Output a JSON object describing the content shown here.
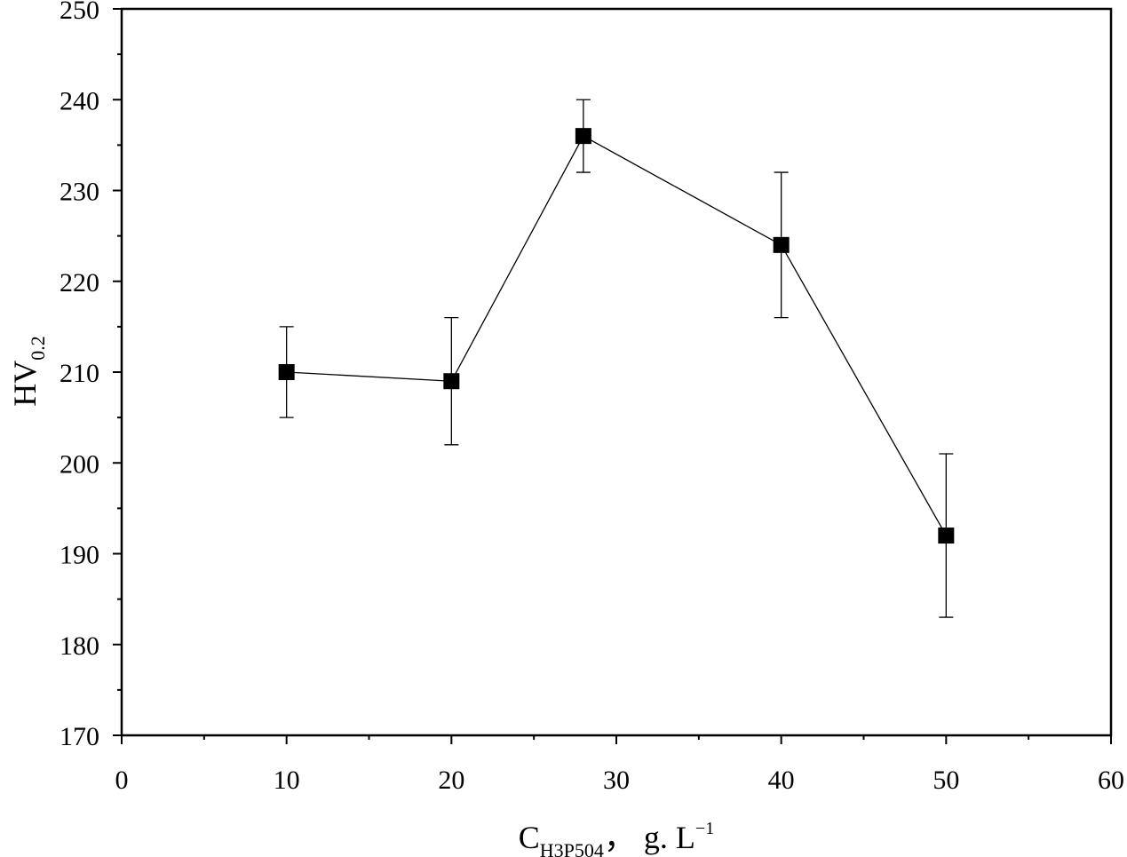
{
  "chart_data": {
    "type": "scatter",
    "title": "",
    "xlabel": {
      "main": "C",
      "subscript": "H3P504",
      "unit": "， g. L",
      "unit_superscript": "−1"
    },
    "ylabel": {
      "main": "HV",
      "subscript": "0.2"
    },
    "xlim": [
      0,
      60
    ],
    "ylim": [
      170,
      250
    ],
    "x_ticks": [
      0,
      10,
      20,
      30,
      40,
      50,
      60
    ],
    "y_ticks": [
      170,
      180,
      190,
      200,
      210,
      220,
      230,
      240,
      250
    ],
    "grid": false,
    "legend": "none",
    "line_connected": true,
    "marker": "filled-square",
    "series": [
      {
        "x": [
          10,
          20,
          28,
          40,
          50
        ],
        "y": [
          210,
          209,
          236,
          224,
          192
        ],
        "error_low": [
          205,
          202,
          232,
          216,
          183
        ],
        "error_high": [
          215,
          216,
          240,
          232,
          201
        ]
      }
    ]
  },
  "colors": {
    "axis": "#000000",
    "marker": "#000000",
    "line": "#000000",
    "background": "#ffffff"
  }
}
